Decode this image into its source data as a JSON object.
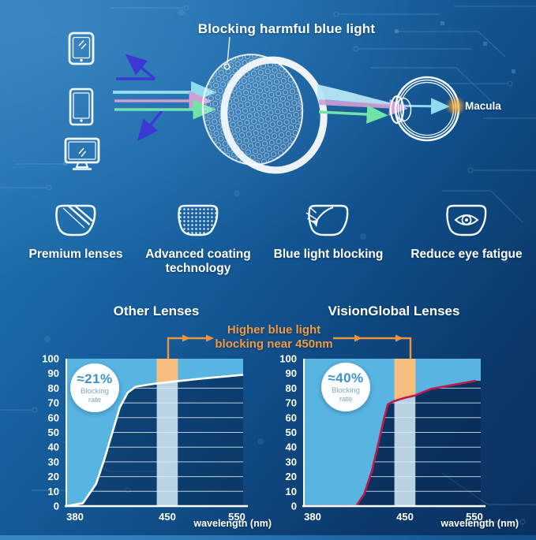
{
  "page": {
    "bg_top_color": "#2a7ab8",
    "bg_bottom_color": "#0a3160",
    "accent_orange": "#ed9440"
  },
  "hero": {
    "title": "Blocking harmful blue light",
    "macula_label": "Macula",
    "devices": [
      "smartphone",
      "tablet",
      "monitor"
    ],
    "ray_colors": {
      "reflected_blue": "#3c38d4",
      "cyan": "#90dcef",
      "pink": "#cf9fd4",
      "green": "#70e3a6"
    }
  },
  "features": [
    {
      "icon": "lens-shine-icon",
      "label": "Premium lenses"
    },
    {
      "icon": "lens-coating-icon",
      "label": "Advanced coating technology"
    },
    {
      "icon": "lens-block-icon",
      "label": "Blue light blocking"
    },
    {
      "icon": "lens-eye-icon",
      "label": "Reduce eye fatigue"
    }
  ],
  "comparison": {
    "annotation": {
      "line1": "Higher blue light",
      "line2": "blocking near 450nm",
      "color": "#ed9440"
    }
  },
  "chart_data": [
    {
      "type": "area",
      "title": "Other Lenses",
      "xlabel": "wavelength (nm)",
      "x_ticks": [
        "380",
        "450",
        "550"
      ],
      "y_ticks": [
        "100",
        "90",
        "80",
        "70",
        "60",
        "50",
        "40",
        "30",
        "20",
        "10",
        "0"
      ],
      "ylim": [
        0,
        100
      ],
      "badge_value": "≈21%",
      "badge_label_1": "Blocking",
      "badge_label_2": "rate",
      "band_nm": [
        442,
        465
      ],
      "curve_color": "#ffffff",
      "fill_color": "#58b4e0",
      "band_color": "#d9edf9",
      "band_highlight_color": "#f6bd7e",
      "note": "shaded area above curve = blocked light; orange = extra blocking near 450nm",
      "series": [
        {
          "name": "transmission boundary",
          "points": [
            [
              373,
              0
            ],
            [
              386,
              2
            ],
            [
              396,
              15
            ],
            [
              402,
              31
            ],
            [
              408,
              49
            ],
            [
              414,
              67
            ],
            [
              420,
              77
            ],
            [
              426,
              81
            ],
            [
              440,
              83
            ],
            [
              450,
              84
            ],
            [
              500,
              86.5
            ],
            [
              558,
              89
            ]
          ]
        }
      ]
    },
    {
      "type": "area",
      "title": "VisionGlobal Lenses",
      "xlabel": "wavelength (nm)",
      "x_ticks": [
        "380",
        "450",
        "550"
      ],
      "y_ticks": [
        "100",
        "90",
        "80",
        "70",
        "60",
        "50",
        "40",
        "30",
        "20",
        "10",
        "0"
      ],
      "ylim": [
        0,
        100
      ],
      "badge_value": "≈40%",
      "badge_label_1": "Blocking",
      "badge_label_2": "rate",
      "band_nm": [
        442,
        465
      ],
      "curve_color": "#c2174d",
      "fill_color": "#58b4e0",
      "band_color": "#d9edf9",
      "band_highlight_color": "#f6bd7e",
      "note": "shaded area above curve = blocked light; orange = extra blocking near 450nm",
      "series": [
        {
          "name": "transmission boundary",
          "points": [
            [
              371,
              0
            ],
            [
              413,
              0
            ],
            [
              419,
              8
            ],
            [
              425,
              24
            ],
            [
              430,
              43
            ],
            [
              434,
              59
            ],
            [
              437,
              69
            ],
            [
              441,
              71
            ],
            [
              450,
              73.5
            ],
            [
              464,
              75
            ],
            [
              477,
              77.5
            ],
            [
              488,
              79.5
            ],
            [
              505,
              81
            ],
            [
              551,
              85
            ]
          ]
        }
      ]
    }
  ]
}
